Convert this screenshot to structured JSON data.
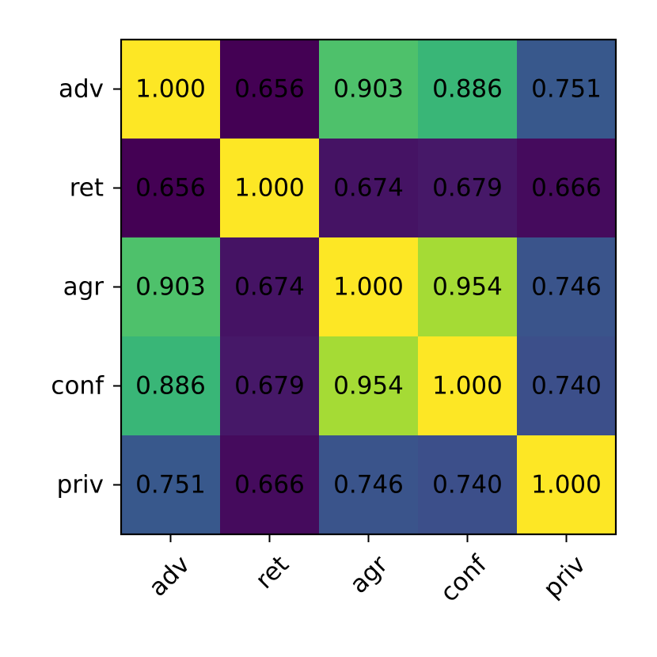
{
  "chart_data": {
    "type": "heatmap",
    "title": "",
    "xlabel": "",
    "ylabel": "",
    "x_categories": [
      "adv",
      "ret",
      "agr",
      "conf",
      "priv"
    ],
    "y_categories": [
      "adv",
      "ret",
      "agr",
      "conf",
      "priv"
    ],
    "values": [
      [
        1.0,
        0.656,
        0.903,
        0.886,
        0.751
      ],
      [
        0.656,
        1.0,
        0.674,
        0.679,
        0.666
      ],
      [
        0.903,
        0.674,
        1.0,
        0.954,
        0.746
      ],
      [
        0.886,
        0.679,
        0.954,
        1.0,
        0.74
      ],
      [
        0.751,
        0.666,
        0.746,
        0.74,
        1.0
      ]
    ],
    "value_format": "3 decimals",
    "colormap": "viridis",
    "color_range": [
      0.656,
      1.0
    ],
    "colorbar": false,
    "grid": false,
    "x_tick_rotation_deg": 45
  }
}
